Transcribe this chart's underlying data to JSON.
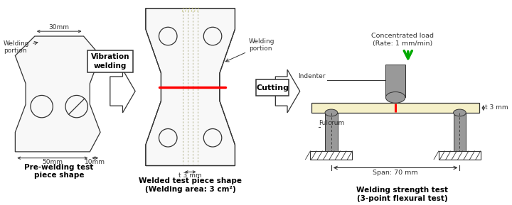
{
  "bg_color": "#ffffff",
  "label1": "Pre-welding test\npiece shape",
  "label2": "Welded test piece shape\n(Welding area: 3 cm²)",
  "label3": "Welding strength test\n(3-point flexural test)",
  "vib_welding_text": "Vibration\nwelding",
  "cutting_text": "Cutting",
  "welding_portion_text": "Welding\nportion",
  "welding_portion_text2": "Welding\nportion",
  "indenter_text": "Indenter",
  "fulcrum_text": "Fulcrum",
  "conc_load_text": "Concentrated load\n(Rate: 1 mm/min)",
  "span_text": "Span: 70 mm",
  "t3mm_text": "t 3 mm",
  "t3mm2_text": "t 3 mm",
  "dim_30mm": "30mm",
  "dim_50mm": "50mm",
  "dim_10mm": "10mm"
}
